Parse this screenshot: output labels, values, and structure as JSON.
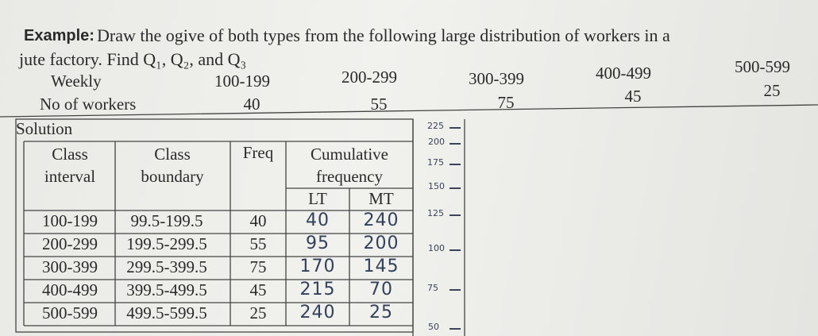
{
  "example": {
    "label": "Example:",
    "line1": "Draw the ogive of both types from the following large distribution of workers in a",
    "line2": "jute factory. Find Q₁, Q₂, and Q₃"
  },
  "distribution": {
    "row_label_1": "Weekly",
    "classes": [
      "100-199",
      "200-299",
      "300-399",
      "400-499",
      "500-599"
    ],
    "row_label_2": "No of workers",
    "workers": [
      40,
      55,
      75,
      45,
      25
    ]
  },
  "solution": "Solution",
  "table": {
    "headers": {
      "interval": "Class interval",
      "boundary": "Class boundary",
      "freq": "Freq",
      "cumulative": "Cumulative frequency",
      "lt": "LT",
      "mt": "MT"
    },
    "rows": [
      [
        "100-199",
        "99.5-199.5",
        40,
        40,
        240
      ],
      [
        "200-299",
        "199.5-299.5",
        55,
        95,
        200
      ],
      [
        "300-399",
        "299.5-399.5",
        75,
        170,
        145
      ],
      [
        "400-499",
        "399.5-499.5",
        45,
        215,
        70
      ],
      [
        "500-599",
        "499.5-599.5",
        25,
        240,
        25
      ]
    ]
  },
  "handwritten_axis": [
    225,
    200,
    175,
    150,
    125,
    100,
    75,
    50
  ]
}
